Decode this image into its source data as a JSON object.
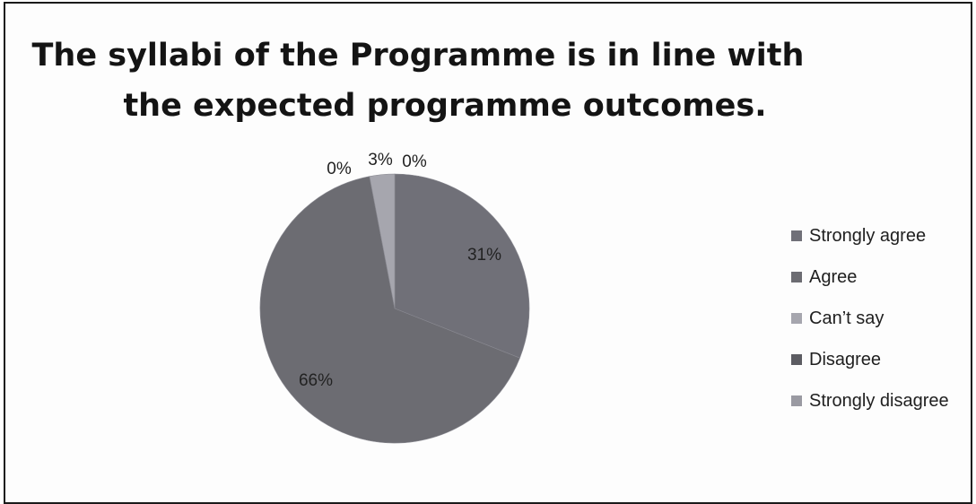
{
  "chart_data": {
    "type": "pie",
    "title": "The syllabi of the Programme is in line with the expected programme outcomes.",
    "title_lines": [
      "The syllabi of the Programme is in line with",
      "the expected programme outcomes."
    ],
    "categories": [
      "Strongly agree",
      "Agree",
      "Can’t say",
      "Disagree",
      "Strongly disagree"
    ],
    "values": [
      31,
      66,
      3,
      0,
      0
    ],
    "labels": [
      "31%",
      "66%",
      "3%",
      "0%",
      "0%"
    ],
    "colors": [
      "#707078",
      "#6c6c72",
      "#a6a6ae",
      "#5c5c62",
      "#9a9aa2"
    ],
    "legend_position": "right"
  }
}
